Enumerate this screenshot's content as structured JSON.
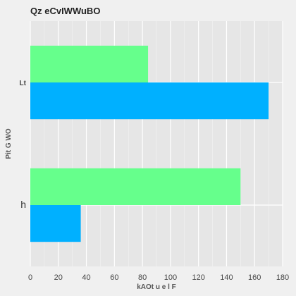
{
  "chart_data": {
    "type": "bar",
    "orientation": "horizontal",
    "title": "Qz eCvIWWuBO",
    "xlabel": "kAOt u e  l  F",
    "ylabel": "Pit G  WO",
    "categories": [
      "Lt",
      "h"
    ],
    "series": [
      {
        "color": "#66ff8c",
        "values": [
          84,
          150
        ]
      },
      {
        "color": "#00b0ff",
        "values": [
          170,
          36
        ]
      }
    ],
    "xlim": [
      0,
      180
    ],
    "xticks": [
      0,
      20,
      40,
      60,
      80,
      100,
      120,
      140,
      160,
      180
    ],
    "grid": true,
    "background": "#e6e6e6",
    "page_background": "#f0f0f0"
  }
}
